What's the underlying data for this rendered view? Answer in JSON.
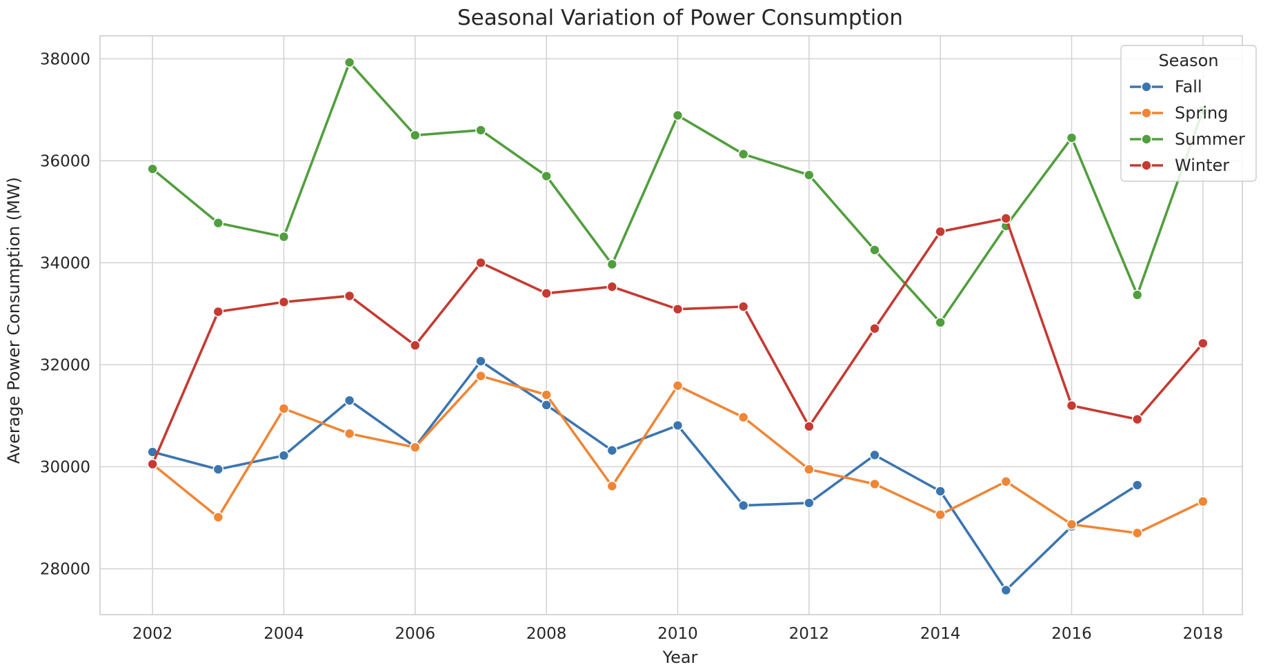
{
  "chart_data": {
    "type": "line",
    "title": "Seasonal Variation of Power Consumption",
    "xlabel": "Year",
    "ylabel": "Average Power Consumption (MW)",
    "xlim": [
      2001.2,
      2018.6
    ],
    "ylim": [
      27100,
      38450
    ],
    "xticks": [
      2002,
      2004,
      2006,
      2008,
      2010,
      2012,
      2014,
      2016,
      2018
    ],
    "yticks": [
      28000,
      30000,
      32000,
      34000,
      36000,
      38000
    ],
    "grid": true,
    "legend": {
      "title": "Season",
      "placement": "top-right"
    },
    "series": [
      {
        "name": "Fall",
        "color": "#3b75af",
        "x": [
          2002,
          2003,
          2004,
          2005,
          2006,
          2007,
          2008,
          2009,
          2010,
          2011,
          2012,
          2013,
          2014,
          2015,
          2016,
          2017
        ],
        "y": [
          30290,
          29950,
          30220,
          31300,
          30390,
          32070,
          31210,
          30320,
          30810,
          29240,
          29290,
          30230,
          29520,
          27580,
          28830,
          29640
        ]
      },
      {
        "name": "Spring",
        "color": "#ef8636",
        "x": [
          2002,
          2003,
          2004,
          2005,
          2006,
          2007,
          2008,
          2009,
          2010,
          2011,
          2012,
          2013,
          2014,
          2015,
          2016,
          2017,
          2018
        ],
        "y": [
          30050,
          29010,
          31140,
          30650,
          30380,
          31780,
          31410,
          29620,
          31590,
          30970,
          29950,
          29660,
          29060,
          29710,
          28870,
          28700,
          29320
        ]
      },
      {
        "name": "Summer",
        "color": "#519e3e",
        "x": [
          2002,
          2003,
          2004,
          2005,
          2006,
          2007,
          2008,
          2009,
          2010,
          2011,
          2012,
          2013,
          2014,
          2015,
          2016,
          2017,
          2018
        ],
        "y": [
          35840,
          34780,
          34510,
          37930,
          36500,
          36600,
          35700,
          33970,
          36890,
          36130,
          35720,
          34250,
          32830,
          34720,
          36450,
          33370,
          36990
        ]
      },
      {
        "name": "Winter",
        "color": "#c53a32",
        "x": [
          2002,
          2003,
          2004,
          2005,
          2006,
          2007,
          2008,
          2009,
          2010,
          2011,
          2012,
          2013,
          2014,
          2015,
          2016,
          2017,
          2018
        ],
        "y": [
          30050,
          33040,
          33230,
          33350,
          32380,
          34000,
          33400,
          33530,
          33090,
          33140,
          30790,
          32710,
          34610,
          34870,
          31200,
          30930,
          32420
        ]
      }
    ]
  }
}
